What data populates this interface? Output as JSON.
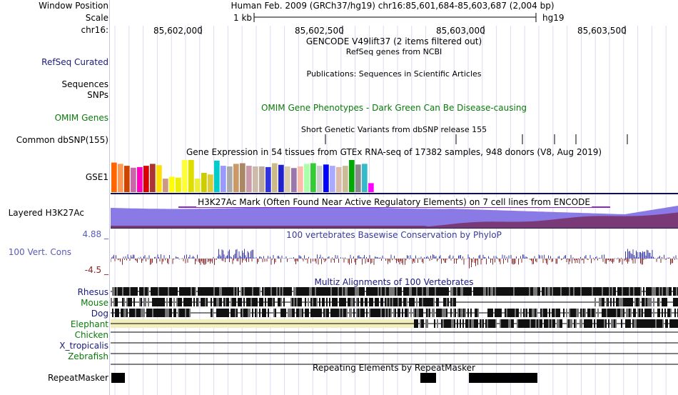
{
  "header": {
    "window_position_label": "Window Position",
    "window_position_text": "Human Feb. 2009 (GRCh37/hg19)   chr16:85,601,684-85,603,687 (2,004 bp)",
    "scale_label": "Scale",
    "scale_value": "1 kb",
    "scale_assembly": "hg19",
    "chrom_label": "chr16:",
    "ruler_ticks": [
      "85,602,000",
      "85,602,500",
      "85,603,000",
      "85,603,500"
    ]
  },
  "tracks": {
    "gencode_title": "GENCODE V49lift37 (2 items filtered out)",
    "refseq_label": "RefSeq Curated",
    "refseq_title": "RefSeq genes from NCBI",
    "publications_title": "Publications: Sequences in Scientific Articles",
    "sequences_label": "Sequences",
    "snps_label": "SNPs",
    "omim_label": "OMIM Genes",
    "omim_title": "OMIM Gene Phenotypes - Dark Green Can Be Disease-causing",
    "dbsnp_title": "Short Genetic Variants from dbSNP release 155",
    "dbsnp_label": "Common dbSNP(155)",
    "gtex_title": "Gene Expression in 54 tissues from GTEx RNA-seq of 17382 samples, 948 donors (V8, Aug 2019)",
    "gtex_label": "GSE1",
    "h3k27ac_label": "Layered H3K27Ac",
    "h3k27ac_title": "H3K27Ac Mark (Often Found Near Active Regulatory Elements) on 7 cell lines from ENCODE",
    "cons_max": "4.88 _",
    "cons_label": "100 Vert. Cons",
    "cons_min": "-4.5 _",
    "phylop_title": "100 vertebrates Basewise Conservation by PhyloP",
    "multiz_title": "Multiz Alignments of 100 Vertebrates",
    "species": [
      "Rhesus",
      "Mouse",
      "Dog",
      "Elephant",
      "Chicken",
      "X_tropicalis",
      "Zebrafish"
    ],
    "repeat_title": "Repeating Elements by RepeatMasker",
    "repeat_label": "RepeatMasker"
  },
  "gtex_colors": [
    "#ff6600",
    "#ff9955",
    "#cc4400",
    "#cc66aa",
    "#ff00bb",
    "#dd0000",
    "#aa3333",
    "#ffdd00",
    "#cc9988",
    "#ffff00",
    "#eeee00",
    "#ffff33",
    "#dddd00",
    "#eeee33",
    "#cccc00",
    "#ddcc33",
    "#00cccc",
    "#9999ff",
    "#aaaaaa",
    "#cc9966",
    "#aa8866",
    "#cc99aa",
    "#ccbbaa",
    "#bbaa99",
    "#3333dd",
    "#ccbb88",
    "#2222cc",
    "#ddccaa",
    "#9977aa",
    "#ffbbaa",
    "#aaffaa",
    "#33cc33",
    "#cccccc",
    "#0000ff",
    "#aaaaff",
    "#ddbbaa",
    "#ccbb99",
    "#00aa00",
    "#888888",
    "#33bbcc",
    "#ff00ff"
  ],
  "gtex_values": [
    0.92,
    0.88,
    0.82,
    0.76,
    0.78,
    0.82,
    0.88,
    0.84,
    0.42,
    0.48,
    0.45,
    1.0,
    1.0,
    0.42,
    0.6,
    0.55,
    0.98,
    0.82,
    0.8,
    0.88,
    0.9,
    0.82,
    0.8,
    0.8,
    0.78,
    0.9,
    0.85,
    0.8,
    0.75,
    0.8,
    0.88,
    0.9,
    0.82,
    0.86,
    0.82,
    0.78,
    0.82,
    1.0,
    0.86,
    0.88,
    0.28
  ]
}
